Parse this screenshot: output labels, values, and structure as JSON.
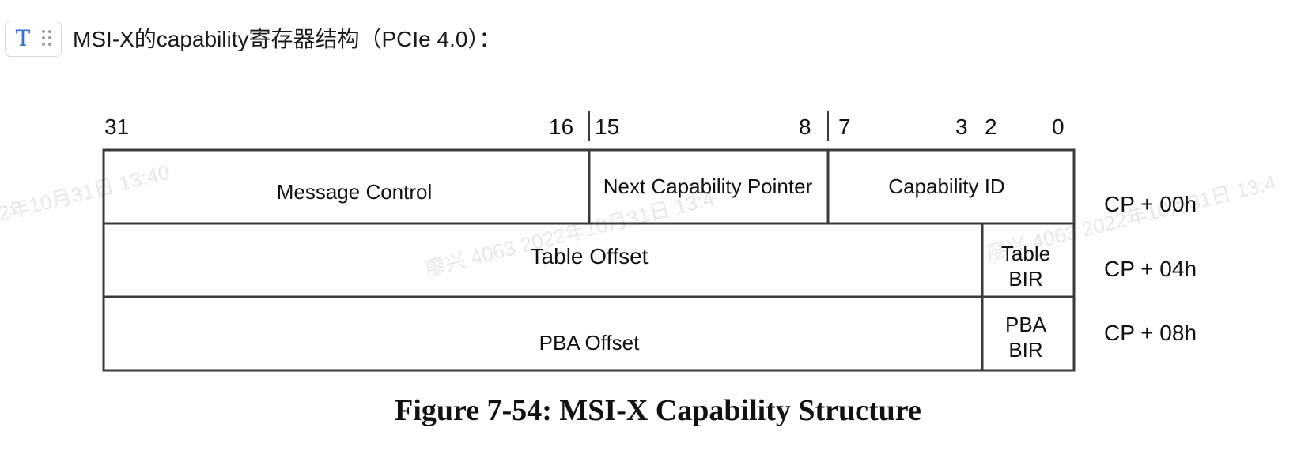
{
  "block": {
    "type_icon": "T",
    "type_icon_name": "text-type-icon",
    "drag_icon_name": "drag-handle-icon"
  },
  "heading": "MSI-X的capability寄存器结构（PCIe 4.0）：",
  "figure": {
    "bit_labels": {
      "b31": "31",
      "b16": "16",
      "b15": "15",
      "b8": "8",
      "b7": "7",
      "b3": "3",
      "b2": "2",
      "b0": "0"
    },
    "rows": [
      {
        "cells": [
          "Message Control",
          "Next Capability Pointer",
          "Capability ID"
        ],
        "offset": "CP + 00h"
      },
      {
        "cells": [
          "Table Offset"
        ],
        "bir": [
          "Table",
          "BIR"
        ],
        "offset": "CP + 04h"
      },
      {
        "cells": [
          "PBA Offset"
        ],
        "bir": [
          "PBA",
          "BIR"
        ],
        "offset": "CP + 08h"
      }
    ],
    "caption": "Figure 7-54:  MSI-X Capability Structure"
  },
  "watermark": {
    "texts": [
      "2年10月31日 13:40",
      "廖兴 4063 2022年10月31日 13:4",
      "廖兴 4063 2022年10月31日 13:4"
    ]
  },
  "colors": {
    "line": "#3a3a3a",
    "icon_accent": "#3b6fd8",
    "watermark": "#e7e7e7"
  }
}
